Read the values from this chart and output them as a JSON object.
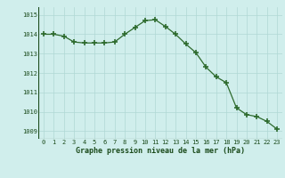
{
  "x": [
    0,
    1,
    2,
    3,
    4,
    5,
    6,
    7,
    8,
    9,
    10,
    11,
    12,
    13,
    14,
    15,
    16,
    17,
    18,
    19,
    20,
    21,
    22,
    23
  ],
  "y": [
    1014.0,
    1014.0,
    1013.9,
    1013.6,
    1013.55,
    1013.55,
    1013.55,
    1013.6,
    1014.0,
    1014.35,
    1014.7,
    1014.75,
    1014.4,
    1014.0,
    1013.5,
    1013.05,
    1012.3,
    1011.8,
    1011.5,
    1010.2,
    1009.85,
    1009.75,
    1009.5,
    1009.1
  ],
  "line_color": "#2d6a2d",
  "marker_color": "#2d6a2d",
  "bg_color": "#d0eeec",
  "grid_color": "#b0d8d4",
  "xlabel": "Graphe pression niveau de la mer (hPa)",
  "xlabel_color": "#1a4a1a",
  "ytick_values": [
    1009,
    1010,
    1011,
    1012,
    1013,
    1014,
    1015
  ],
  "ylim": [
    1008.6,
    1015.4
  ],
  "xlim": [
    -0.5,
    23.5
  ]
}
